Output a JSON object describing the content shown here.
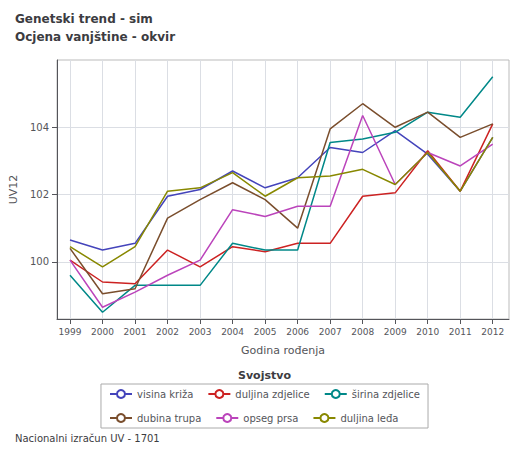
{
  "chart_data": {
    "type": "line",
    "title": "Genetski trend - sim",
    "subtitle": "Ocjena vanjštine - okvir",
    "x_label": "Godina rođenja",
    "y_label": "UV12",
    "annotations": [
      "Nacionalni izračun UV - 1701"
    ],
    "legend_title": "Svojstvo",
    "legend": "bottom",
    "grid": true,
    "x": [
      1999,
      2000,
      2001,
      2002,
      2003,
      2004,
      2005,
      2006,
      2007,
      2008,
      2009,
      2010,
      2011,
      2012
    ],
    "xlim": [
      1998.6,
      2012.5
    ],
    "xticks": [
      1999,
      2000,
      2001,
      2002,
      2003,
      2004,
      2005,
      2006,
      2007,
      2008,
      2009,
      2010,
      2011,
      2012
    ],
    "ylim": [
      98.3,
      106.0
    ],
    "yticks": [
      100,
      102,
      104
    ],
    "series": [
      {
        "name": "visina križa",
        "color": "#4444bb",
        "values": [
          100.65,
          100.35,
          100.55,
          101.95,
          102.15,
          102.7,
          102.2,
          102.5,
          103.4,
          103.25,
          103.9,
          103.2,
          102.1,
          103.7
        ]
      },
      {
        "name": "duljina zdjelice",
        "color": "#cc2222",
        "values": [
          100.05,
          99.4,
          99.35,
          100.35,
          99.85,
          100.45,
          100.3,
          100.55,
          100.55,
          101.95,
          102.05,
          103.3,
          102.1,
          104.1
        ]
      },
      {
        "name": "širina zdjelice",
        "color": "#008888",
        "values": [
          99.6,
          98.5,
          99.3,
          99.3,
          99.3,
          100.55,
          100.35,
          100.35,
          103.55,
          103.65,
          103.85,
          104.45,
          104.3,
          105.5
        ]
      },
      {
        "name": "dubina trupa",
        "color": "#7a4e2d",
        "values": [
          100.4,
          99.05,
          99.2,
          101.3,
          101.85,
          102.35,
          101.85,
          101.0,
          103.95,
          104.7,
          104.0,
          104.45,
          103.7,
          104.1
        ]
      },
      {
        "name": "opseg prsa",
        "color": "#bb44bb",
        "values": [
          100.05,
          98.65,
          99.1,
          99.6,
          100.05,
          101.55,
          101.35,
          101.65,
          101.65,
          104.35,
          102.3,
          103.25,
          102.85,
          103.5
        ]
      },
      {
        "name": "duljina leđa",
        "color": "#888800",
        "values": [
          100.45,
          99.85,
          100.45,
          102.1,
          102.2,
          102.65,
          101.95,
          102.5,
          102.55,
          102.75,
          102.3,
          103.25,
          102.1,
          103.7
        ]
      }
    ]
  }
}
